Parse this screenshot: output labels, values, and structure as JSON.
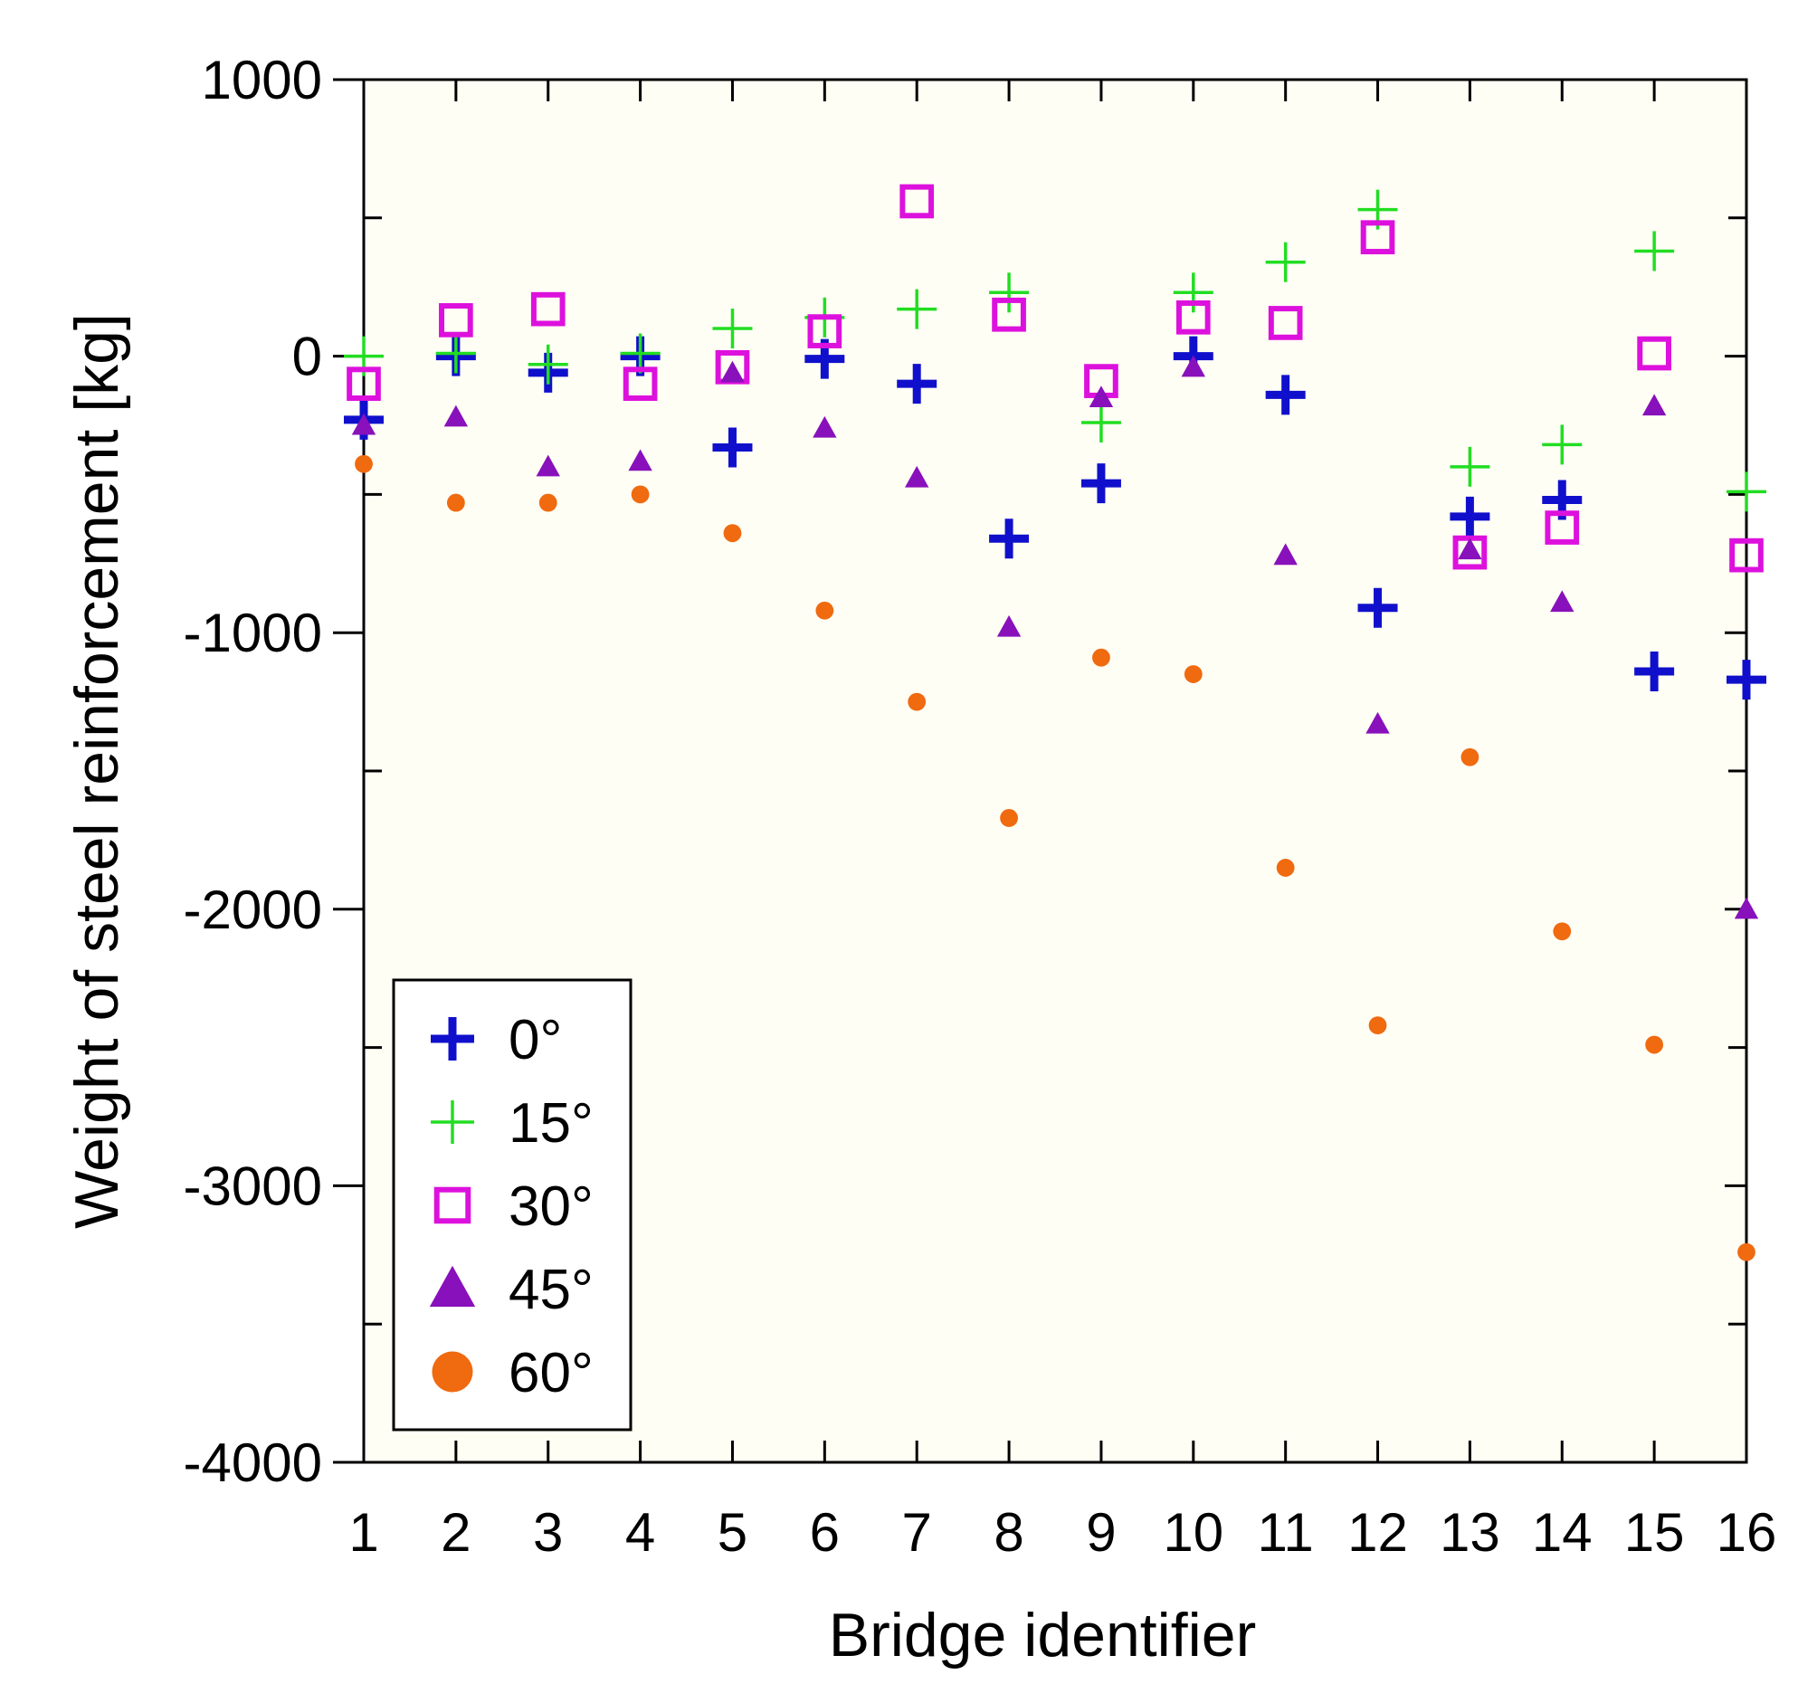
{
  "chart_data": {
    "type": "scatter",
    "xlabel": "Bridge identifier",
    "ylabel": "Weight of steel reinforcement [kg]",
    "xlim": [
      1,
      16
    ],
    "ylim": [
      -4000,
      1000
    ],
    "x_ticks": [
      "1",
      "2",
      "3",
      "4",
      "5",
      "6",
      "7",
      "8",
      "9",
      "10",
      "11",
      "12",
      "13",
      "14",
      "15",
      "16"
    ],
    "y_ticks": [
      {
        "value": 1000,
        "label": "1000"
      },
      {
        "value": 0,
        "label": "0"
      },
      {
        "value": -1000,
        "label": "-1000"
      },
      {
        "value": -2000,
        "label": "-2000"
      },
      {
        "value": -3000,
        "label": "-3000"
      },
      {
        "value": -4000,
        "label": "-4000"
      }
    ],
    "legend_position": "bottom-left",
    "x": [
      1,
      2,
      3,
      4,
      5,
      6,
      7,
      8,
      9,
      10,
      11,
      12,
      13,
      14,
      15,
      16
    ],
    "series": [
      {
        "name": "0°",
        "marker": "bold-plus",
        "color": "#1010CC",
        "values": [
          -230,
          0,
          -60,
          0,
          -330,
          -10,
          -100,
          -660,
          -460,
          0,
          -140,
          -910,
          -580,
          -520,
          -1140,
          -1170
        ]
      },
      {
        "name": "15°",
        "marker": "plus",
        "color": "#22DD22",
        "values": [
          0,
          10,
          -30,
          10,
          100,
          140,
          170,
          230,
          -240,
          230,
          340,
          530,
          -400,
          -320,
          380,
          -490
        ]
      },
      {
        "name": "30°",
        "marker": "square",
        "color": "#DD11DD",
        "values": [
          -100,
          130,
          170,
          -100,
          -40,
          90,
          560,
          150,
          -90,
          140,
          120,
          430,
          -710,
          -620,
          10,
          -720
        ]
      },
      {
        "name": "45°",
        "marker": "triangle",
        "color": "#8811BB",
        "values": [
          -250,
          -220,
          -400,
          -380,
          -60,
          -260,
          -440,
          -980,
          -150,
          -40,
          -720,
          -1330,
          -700,
          -890,
          -180,
          -2000
        ]
      },
      {
        "name": "60°",
        "marker": "circle",
        "color": "#F06A10",
        "values": [
          -390,
          -530,
          -530,
          -500,
          -640,
          -920,
          -1250,
          -1670,
          -1090,
          -1150,
          -1850,
          -2420,
          -1450,
          -2080,
          -2490,
          -3240
        ]
      }
    ]
  }
}
